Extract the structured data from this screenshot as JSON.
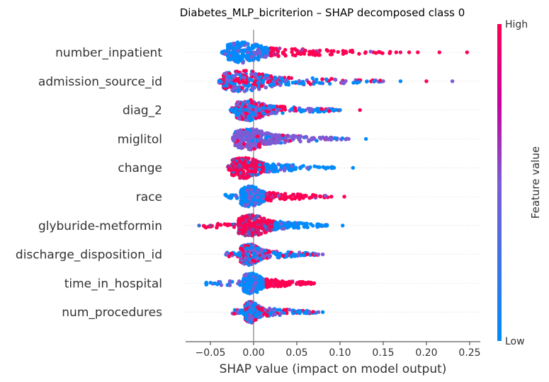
{
  "chart_data": {
    "type": "scatter",
    "subtype": "shap-beeswarm",
    "title": "Diabetes_MLP_bicriterion – SHAP decomposed class 0",
    "xlabel": "SHAP value (impact on model output)",
    "ylabel": "",
    "xlim": [
      -0.078,
      0.265
    ],
    "xticks": [
      -0.05,
      0.0,
      0.05,
      0.1,
      0.15,
      0.2,
      0.25
    ],
    "xtick_labels": [
      "−0.05",
      "0.00",
      "0.05",
      "0.10",
      "0.15",
      "0.20",
      "0.25"
    ],
    "grid": false,
    "colorbar": {
      "label": "Feature value",
      "high_label": "High",
      "low_label": "Low",
      "low_color": "#008bfb",
      "high_color": "#ff0052"
    },
    "features": [
      {
        "name": "number_inpatient",
        "min": -0.037,
        "max": 0.247,
        "core": [
          -0.03,
          0.02
        ],
        "tail_color": "high",
        "outliers": [
          0.165,
          0.17,
          0.18,
          0.19,
          0.215,
          0.247
        ]
      },
      {
        "name": "admission_source_id",
        "min": -0.04,
        "max": 0.23,
        "core": [
          -0.035,
          0.03
        ],
        "tail_color": "mixed",
        "outliers": [
          0.15,
          0.17,
          0.2,
          0.23
        ]
      },
      {
        "name": "diag_2",
        "min": -0.027,
        "max": 0.123,
        "core": [
          -0.02,
          0.02
        ],
        "tail_color": "mixed",
        "outliers": [
          0.1,
          0.123
        ]
      },
      {
        "name": "miglitol",
        "min": -0.024,
        "max": 0.13,
        "core": [
          -0.022,
          0.025
        ],
        "tail_color": "mid",
        "outliers": [
          0.11,
          0.13
        ]
      },
      {
        "name": "change",
        "min": -0.03,
        "max": 0.115,
        "core": [
          -0.025,
          0.015
        ],
        "tail_color": "low",
        "outliers": [
          0.093,
          0.115
        ]
      },
      {
        "name": "race",
        "min": -0.033,
        "max": 0.105,
        "core": [
          -0.015,
          0.015
        ],
        "tail_color": "high",
        "outliers": [
          0.09,
          0.105
        ]
      },
      {
        "name": "glyburide-metformin",
        "min": -0.063,
        "max": 0.103,
        "core": [
          -0.018,
          0.025
        ],
        "tail_color": "low",
        "outliers": [
          -0.063,
          -0.05,
          -0.042,
          0.085,
          0.103
        ]
      },
      {
        "name": "discharge_disposition_id",
        "min": -0.032,
        "max": 0.08,
        "core": [
          -0.015,
          0.012
        ],
        "tail_color": "mixed",
        "outliers": [
          0.075,
          0.08
        ]
      },
      {
        "name": "time_in_hospital",
        "min": -0.055,
        "max": 0.07,
        "core": [
          -0.012,
          0.015
        ],
        "tail_color": "high",
        "outliers": [
          -0.055,
          -0.045,
          0.07
        ]
      },
      {
        "name": "num_procedures",
        "min": -0.027,
        "max": 0.08,
        "core": [
          -0.01,
          0.01
        ],
        "tail_color": "mixed",
        "outliers": [
          0.075,
          0.08
        ]
      }
    ]
  }
}
